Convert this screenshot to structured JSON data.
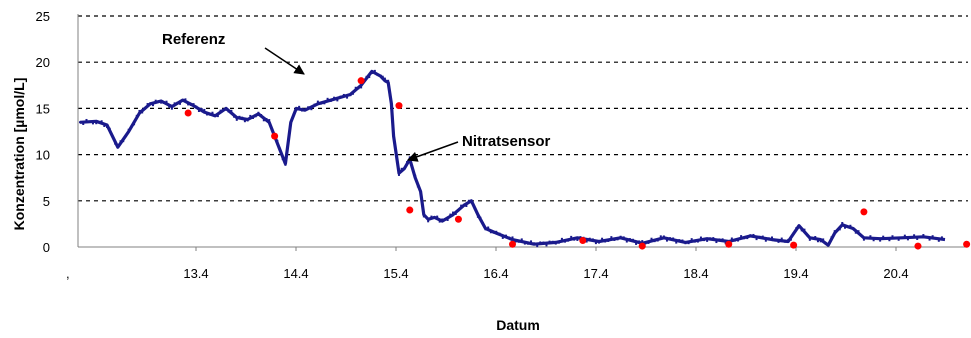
{
  "chart_data": {
    "type": "scatter",
    "title": "",
    "xlabel": "Datum",
    "ylabel": "Konzentration [µmol/L]",
    "x_ticks": [
      "13.4",
      "14.4",
      "15.4",
      "16.4",
      "17.4",
      "18.4",
      "19.4",
      "20.4"
    ],
    "x_tick_values": [
      1,
      2,
      3,
      4,
      5,
      6,
      7,
      8
    ],
    "xlim": [
      0,
      8
    ],
    "y_ticks": [
      "0",
      "5",
      "10",
      "15",
      "20",
      "25"
    ],
    "ylim": [
      0,
      25
    ],
    "grid": "horizontal dashed",
    "colors": {
      "sensor": "#1a1a8c",
      "reference": "#ff0000"
    },
    "series": [
      {
        "name": "Nitratsensor",
        "kind": "line",
        "x": [
          0.0,
          0.15,
          0.25,
          0.35,
          0.45,
          0.55,
          0.65,
          0.75,
          0.85,
          0.95,
          1.05,
          1.15,
          1.25,
          1.35,
          1.45,
          1.55,
          1.65,
          1.75,
          1.85,
          1.9,
          1.95,
          2.0,
          2.08,
          2.2,
          2.35,
          2.5,
          2.6,
          2.7,
          2.78,
          2.82,
          2.85,
          2.88,
          2.9,
          2.95,
          3.0,
          3.05,
          3.1,
          3.15,
          3.18,
          3.22,
          3.28,
          3.35,
          3.45,
          3.55,
          3.62,
          3.68,
          3.75,
          3.85,
          4.0,
          4.2,
          4.4,
          4.6,
          4.8,
          5.0,
          5.2,
          5.4,
          5.6,
          5.8,
          6.0,
          6.2,
          6.4,
          6.55,
          6.65,
          6.75,
          6.85,
          6.92,
          6.98,
          7.05,
          7.15,
          7.25,
          7.4,
          7.6,
          7.8,
          8.0
        ],
        "y": [
          13.5,
          13.6,
          13.2,
          10.8,
          12.5,
          14.5,
          15.5,
          15.8,
          15.2,
          15.9,
          15.3,
          14.6,
          14.2,
          15.0,
          14.0,
          13.8,
          14.4,
          13.5,
          10.5,
          9.0,
          13.5,
          15.0,
          14.8,
          15.5,
          16.0,
          16.5,
          17.5,
          19.0,
          18.5,
          18.0,
          17.8,
          15.5,
          12.0,
          8.0,
          8.5,
          9.5,
          7.5,
          6.0,
          3.5,
          3.0,
          3.2,
          2.8,
          3.5,
          4.5,
          5.0,
          3.5,
          2.0,
          1.5,
          0.8,
          0.3,
          0.5,
          1.0,
          0.6,
          1.0,
          0.4,
          1.0,
          0.5,
          0.9,
          0.6,
          1.2,
          0.8,
          0.6,
          2.3,
          1.0,
          0.8,
          0.2,
          1.5,
          2.4,
          2.0,
          1.0,
          0.9,
          1.0,
          1.1,
          0.8
        ]
      },
      {
        "name": "Referenz",
        "kind": "points",
        "x": [
          1.0,
          1.8,
          2.6,
          2.95,
          3.05,
          3.5,
          4.0,
          4.65,
          5.2,
          6.0,
          6.6,
          7.25,
          7.75,
          8.2
        ],
        "y": [
          14.5,
          12.0,
          18.0,
          15.3,
          4.0,
          3.0,
          0.3,
          0.7,
          0.1,
          0.3,
          0.2,
          3.8,
          0.1,
          0.3
        ]
      }
    ],
    "annotations": [
      {
        "text": "Referenz",
        "target_series": "Referenz"
      },
      {
        "text": "Nitratsensor",
        "target_series": "Nitratsensor"
      }
    ],
    "x_start_marker": ","
  }
}
